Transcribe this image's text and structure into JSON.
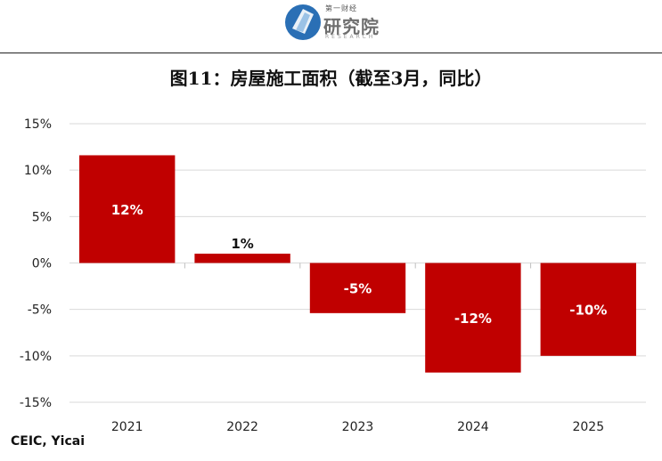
{
  "header": {
    "logo_small": "第一财经",
    "logo_main": "研究院",
    "logo_sub": "RESEARCH"
  },
  "title": "图11：房屋施工面积（截至3月，同比）",
  "source": "CEIC, Yicai",
  "colors": {
    "bar": "#C00000",
    "grid": "#d9d9d9"
  },
  "chart_data": {
    "type": "bar",
    "title": "图11：房屋施工面积（截至3月，同比）",
    "categories": [
      "2021",
      "2022",
      "2023",
      "2024",
      "2025"
    ],
    "values": [
      11.6,
      1.0,
      -5.4,
      -11.8,
      -10.0
    ],
    "data_labels": [
      "12%",
      "1%",
      "-5%",
      "-12%",
      "-10%"
    ],
    "ylim": [
      -15,
      15
    ],
    "yticks": [
      15,
      10,
      5,
      0,
      -5,
      -10,
      -15
    ],
    "ytick_labels": [
      "15%",
      "10%",
      "5%",
      "0%",
      "-5%",
      "-10%",
      "-15%"
    ],
    "grid": true,
    "legend": "none"
  }
}
